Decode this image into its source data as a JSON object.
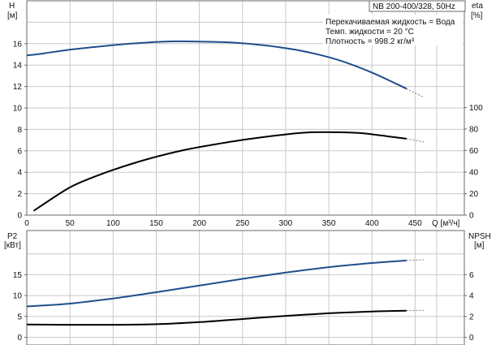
{
  "title_box": "NB 200-400/328, 50Hz",
  "legend_lines": [
    "Перекачиваемая жидкость = Вода",
    "Темп. жидкости = 20 °C",
    "Плотность = 998.2 кг/м³"
  ],
  "colors": {
    "series_blue": "#1f4e8c",
    "series_black": "#000000",
    "dashed": "#777777"
  },
  "chart_data": [
    {
      "type": "line",
      "x_label": "Q [м³/ч]",
      "x_ticks": [
        0,
        50,
        100,
        150,
        200,
        250,
        300,
        350,
        400,
        450
      ],
      "xlim": [
        0,
        460
      ],
      "left_axis": {
        "label_top": "H",
        "label_unit": "[м]",
        "ylim": [
          0,
          18
        ],
        "ticks": [
          0,
          2,
          4,
          6,
          8,
          10,
          12,
          14,
          16
        ]
      },
      "right_axis": {
        "label_top": "eta",
        "label_unit": "[%]",
        "ylim": [
          0,
          100
        ],
        "ticks": [
          0,
          20,
          40,
          60,
          80,
          100
        ]
      },
      "series": [
        {
          "axis": "left",
          "color": "#1f4e8c",
          "x": [
            0,
            20,
            46,
            80,
            120,
            160,
            200,
            240,
            280,
            320,
            360,
            400,
            440
          ],
          "y": [
            14.9,
            15.1,
            15.4,
            15.7,
            16.0,
            16.2,
            16.2,
            16.1,
            15.8,
            15.3,
            14.5,
            13.3,
            11.8
          ],
          "dashed_x": [
            440,
            460
          ],
          "dashed_y": [
            11.8,
            11.0
          ]
        },
        {
          "axis": "right",
          "color": "#000000",
          "x": [
            8,
            46,
            70,
            100,
            140,
            180,
            220,
            260,
            300,
            330,
            360,
            390,
            420,
            440
          ],
          "y": [
            4,
            24,
            33,
            42,
            52,
            60,
            66,
            71,
            75,
            77,
            77,
            76,
            73,
            71
          ],
          "dashed_x": [
            440,
            460
          ],
          "dashed_y": [
            71,
            68
          ]
        }
      ]
    },
    {
      "type": "line",
      "left_axis": {
        "label_top": "P2",
        "label_unit": "[кВт]",
        "ylim": [
          0,
          22
        ],
        "ticks": [
          0,
          5,
          10,
          15
        ]
      },
      "right_axis": {
        "label_top": "NPSH",
        "label_unit": "[м]",
        "ylim": [
          0,
          8.8
        ],
        "ticks": [
          0,
          2,
          4,
          6
        ]
      },
      "series": [
        {
          "axis": "left",
          "color": "#1f4e8c",
          "x": [
            0,
            46,
            100,
            150,
            200,
            250,
            300,
            350,
            400,
            440
          ],
          "y": [
            7.4,
            8.0,
            9.3,
            10.8,
            12.4,
            14.0,
            15.5,
            16.8,
            17.8,
            18.4
          ],
          "dashed_x": [
            440,
            460
          ],
          "dashed_y": [
            18.4,
            18.6
          ]
        },
        {
          "axis": "right",
          "color": "#000000",
          "x": [
            0,
            46,
            100,
            150,
            200,
            250,
            300,
            350,
            400,
            440
          ],
          "y": [
            1.22,
            1.2,
            1.2,
            1.25,
            1.45,
            1.75,
            2.05,
            2.3,
            2.47,
            2.55
          ],
          "dashed_x": [
            440,
            460
          ],
          "dashed_y": [
            2.55,
            2.58
          ]
        }
      ]
    }
  ]
}
